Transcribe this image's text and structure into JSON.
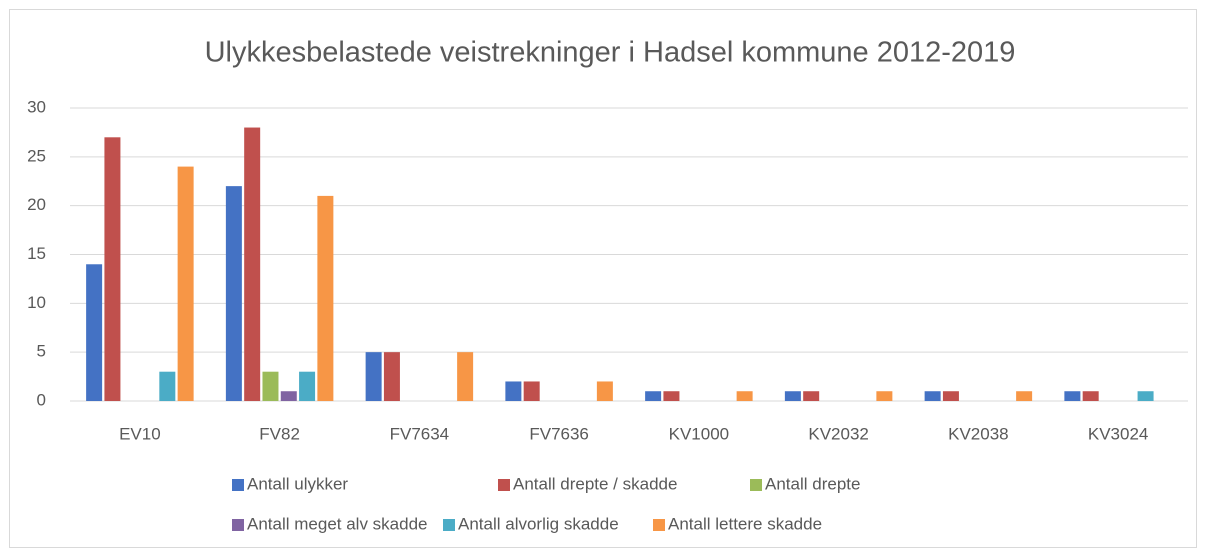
{
  "chart_data": {
    "type": "bar",
    "title": "Ulykkesbelastede veistrekninger i Hadsel kommune 2012-2019",
    "categories": [
      "EV10",
      "FV82",
      "FV7634",
      "FV7636",
      "KV1000",
      "KV2032",
      "KV2038",
      "KV3024"
    ],
    "series": [
      {
        "name": "Antall ulykker",
        "color": "#4472c4",
        "values": [
          14,
          22,
          5,
          2,
          1,
          1,
          1,
          1
        ]
      },
      {
        "name": "Antall drepte / skadde",
        "color": "#c0504d",
        "values": [
          27,
          28,
          5,
          2,
          1,
          1,
          1,
          1
        ]
      },
      {
        "name": "Antall drepte",
        "color": "#9bbb59",
        "values": [
          0,
          3,
          0,
          0,
          0,
          0,
          0,
          0
        ]
      },
      {
        "name": "Antall meget alv skadde",
        "color": "#8064a2",
        "values": [
          0,
          1,
          0,
          0,
          0,
          0,
          0,
          0
        ]
      },
      {
        "name": "Antall alvorlig skadde",
        "color": "#4bacc6",
        "values": [
          3,
          3,
          0,
          0,
          0,
          0,
          0,
          1
        ]
      },
      {
        "name": "Antall lettere skadde",
        "color": "#f79646",
        "values": [
          24,
          21,
          5,
          2,
          1,
          1,
          1,
          0
        ]
      }
    ],
    "ylim": [
      0,
      30
    ],
    "yticks": [
      0,
      5,
      10,
      15,
      20,
      25,
      30
    ],
    "grid": true,
    "legend": "bottom"
  }
}
